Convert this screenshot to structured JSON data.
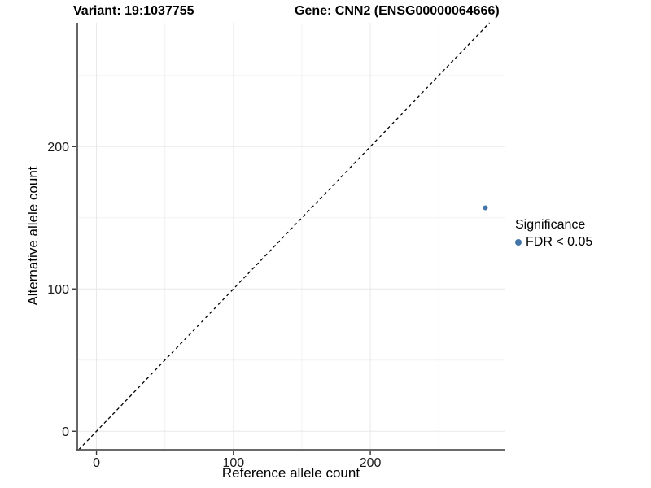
{
  "header": {
    "variant_title": "Variant: 19:1037755",
    "gene_title": "Gene: CNN2 (ENSG00000064666)"
  },
  "legend": {
    "title": "Significance",
    "items": [
      {
        "label": "FDR < 0.05",
        "color": "#4575a8",
        "marker": "dot"
      }
    ]
  },
  "colors": {
    "point": "#4575a8",
    "axis_line": "#555555",
    "tick_mark": "#333333",
    "tick_label": "#1a1a1a",
    "grid_major": "#e8e8e8",
    "grid_minor": "#f2f2f2",
    "identity_line": "#000000"
  },
  "chart_data": {
    "type": "scatter",
    "title": "Variant: 19:1037755 — Gene: CNN2 (ENSG00000064666)",
    "xlabel": "Reference allele count",
    "ylabel": "Alternative allele count",
    "xlim": [
      -14,
      298
    ],
    "ylim": [
      -13,
      287
    ],
    "x_ticks": [
      0,
      100,
      200
    ],
    "y_ticks": [
      0,
      100,
      200
    ],
    "x_minor_ticks": [
      50,
      150,
      250
    ],
    "y_minor_ticks": [
      50,
      150,
      250
    ],
    "grid": "on",
    "legend_position": "right",
    "reference_line": {
      "type": "identity",
      "equation": "y = x",
      "style": "dashed",
      "color": "#000000"
    },
    "series": [
      {
        "name": "FDR < 0.05",
        "color": "#4575a8",
        "points": [
          {
            "x": 284,
            "y": 157
          }
        ]
      }
    ]
  }
}
